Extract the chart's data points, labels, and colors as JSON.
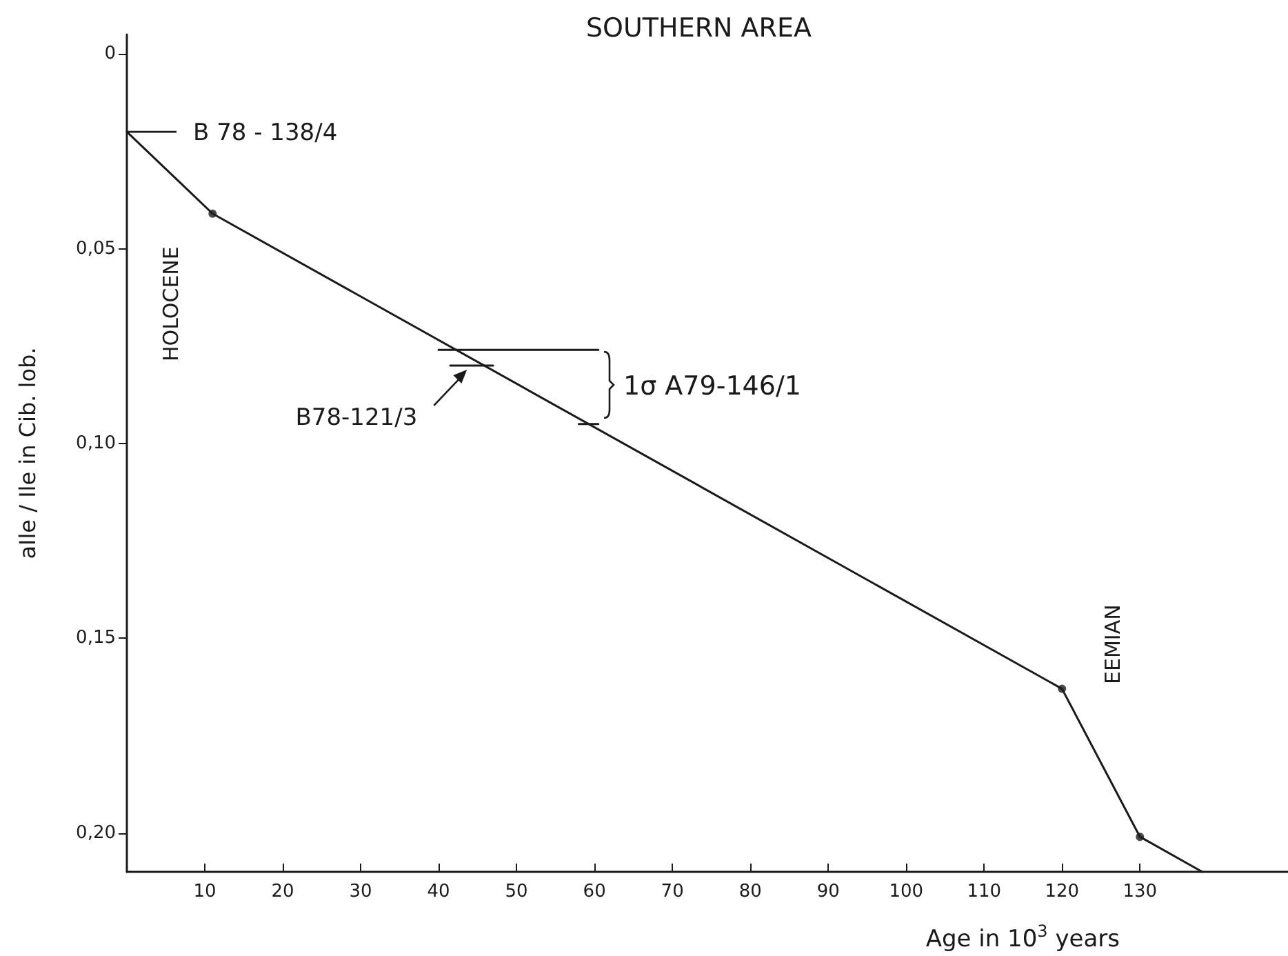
{
  "chart_data": {
    "type": "line",
    "title": "SOUTHERN AREA",
    "xlabel": "Age in 10$^{3}$ years",
    "ylabel": "aIle / Ile in Cib. lob.",
    "xlim": [
      0,
      149
    ],
    "xticks": [
      10,
      20,
      30,
      40,
      50,
      60,
      70,
      80,
      90,
      100,
      110,
      120,
      130
    ],
    "ylim": [
      0.21,
      -0.005
    ],
    "yticks": [
      0,
      {
        "value": 0.05,
        "label": "0,05"
      },
      {
        "value": 0.1,
        "label": "0,10"
      },
      {
        "value": 0.15,
        "label": "0,15"
      },
      {
        "value": 0.2,
        "label": "0,20"
      }
    ],
    "series": [
      {
        "color": "#1a1a1a",
        "x": [
          0,
          11,
          120,
          130,
          138
        ],
        "values": [
          0.02,
          0.041,
          0.163,
          0.201,
          0.21
        ]
      },
      {
        "type": "scatter",
        "color": "#1a1a1a",
        "marker": "circle",
        "x": [
          11,
          120,
          130
        ],
        "values": [
          0.041,
          0.163,
          0.201
        ]
      },
      {
        "color": "#1a1a1a",
        "x": [
          40,
          60.5
        ],
        "values": [
          0.076,
          0.076
        ]
      },
      {
        "color": "#1a1a1a",
        "x": [
          58,
          60.5
        ],
        "values": [
          0.095,
          0.095
        ]
      },
      {
        "color": "#1a1a1a",
        "x": [
          41.5,
          47
        ],
        "values": [
          0.08,
          0.08
        ]
      }
    ],
    "annotations": [
      {
        "text": "B 78 - 138/4",
        "x": 0,
        "y": 0.02
      },
      {
        "text": "B78-121/3",
        "x": 44,
        "y": 0.08
      },
      "1σ A79-146/1",
      "HOLOCENE",
      "EEMIAN"
    ]
  }
}
